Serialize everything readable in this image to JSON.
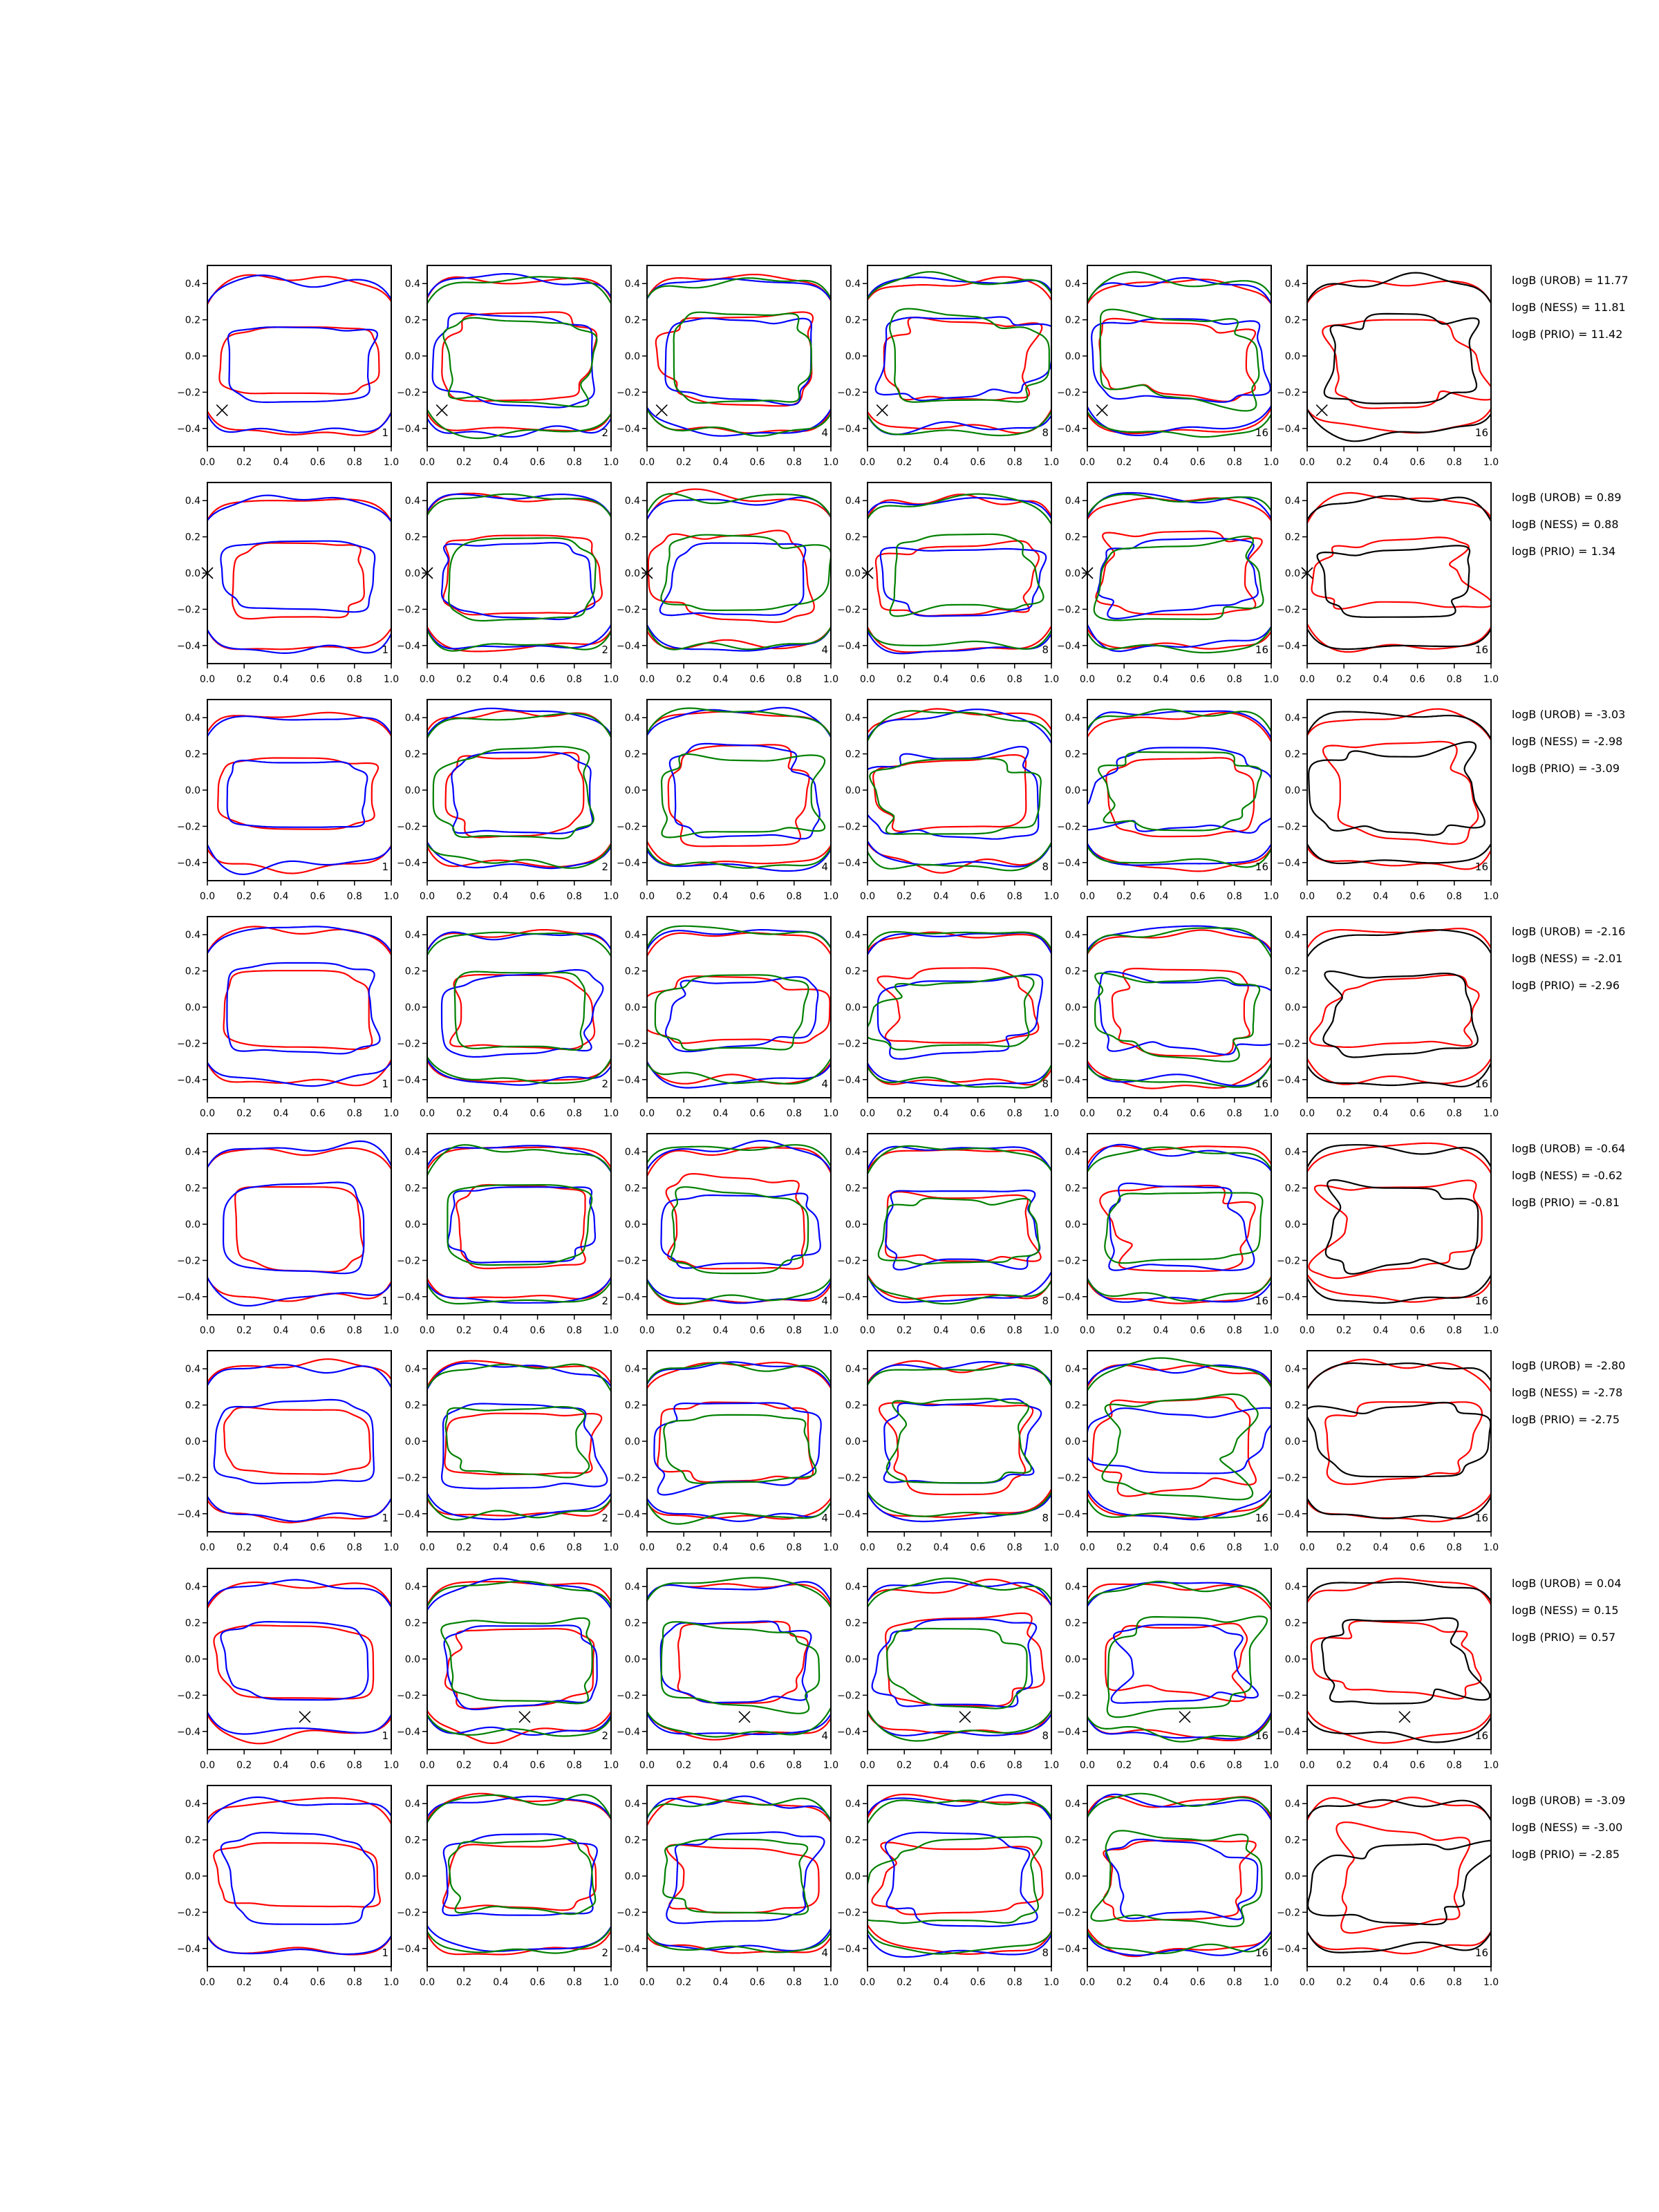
{
  "chart_data": {
    "type": "line",
    "title": "",
    "xlabel": "",
    "ylabel": "",
    "xlim": [
      0.0,
      1.0
    ],
    "ylim": [
      -0.5,
      0.5
    ],
    "xticks": [
      "0.0",
      "0.2",
      "0.4",
      "0.6",
      "0.8",
      "1.0"
    ],
    "yticks": [
      "0.4",
      "0.2",
      "0.0",
      "−0.2",
      "−0.4"
    ],
    "xtick_values": [
      0,
      0.2,
      0.4,
      0.6,
      0.8,
      1.0
    ],
    "ytick_values": [
      0.4,
      0.2,
      0.0,
      -0.2,
      -0.4
    ],
    "grid": false,
    "colors": {
      "red": "#ff0000",
      "blue": "#0000ff",
      "green": "#008000",
      "black": "#000000"
    },
    "columns": [
      {
        "label": "1",
        "series": [
          "red",
          "blue"
        ]
      },
      {
        "label": "2",
        "series": [
          "red",
          "blue",
          "green"
        ]
      },
      {
        "label": "4",
        "series": [
          "red",
          "blue",
          "green"
        ]
      },
      {
        "label": "8",
        "series": [
          "red",
          "blue",
          "green"
        ]
      },
      {
        "label": "16",
        "series": [
          "red",
          "blue",
          "green"
        ]
      },
      {
        "label": "16",
        "series": [
          "red",
          "black"
        ]
      }
    ],
    "rows": [
      {
        "labels": [
          "logB (UROB) = 11.77",
          "logB (NESS) = 11.81",
          "logB (PRIO) = 11.42"
        ],
        "marker": [
          0.08,
          -0.3
        ]
      },
      {
        "labels": [
          "logB (UROB) = 0.89",
          "logB (NESS) = 0.88",
          "logB (PRIO) = 1.34"
        ],
        "marker": [
          0.0,
          0.0
        ]
      },
      {
        "labels": [
          "logB (UROB) = -3.03",
          "logB (NESS) = -2.98",
          "logB (PRIO) = -3.09"
        ],
        "marker": null
      },
      {
        "labels": [
          "logB (UROB) = -2.16",
          "logB (NESS) = -2.01",
          "logB (PRIO) = -2.96"
        ],
        "marker": null
      },
      {
        "labels": [
          "logB (UROB) = -0.64",
          "logB (NESS) = -0.62",
          "logB (PRIO) = -0.81"
        ],
        "marker": null
      },
      {
        "labels": [
          "logB (UROB) = -2.80",
          "logB (NESS) = -2.78",
          "logB (PRIO) = -2.75"
        ],
        "marker": null
      },
      {
        "labels": [
          "logB (UROB) = 0.04",
          "logB (NESS) = 0.15",
          "logB (PRIO) = 0.57"
        ],
        "marker": [
          0.53,
          -0.32
        ]
      },
      {
        "labels": [
          "logB (UROB) = -3.09",
          "logB (NESS) = -3.00",
          "logB (PRIO) = -2.85"
        ],
        "marker": null
      }
    ]
  }
}
